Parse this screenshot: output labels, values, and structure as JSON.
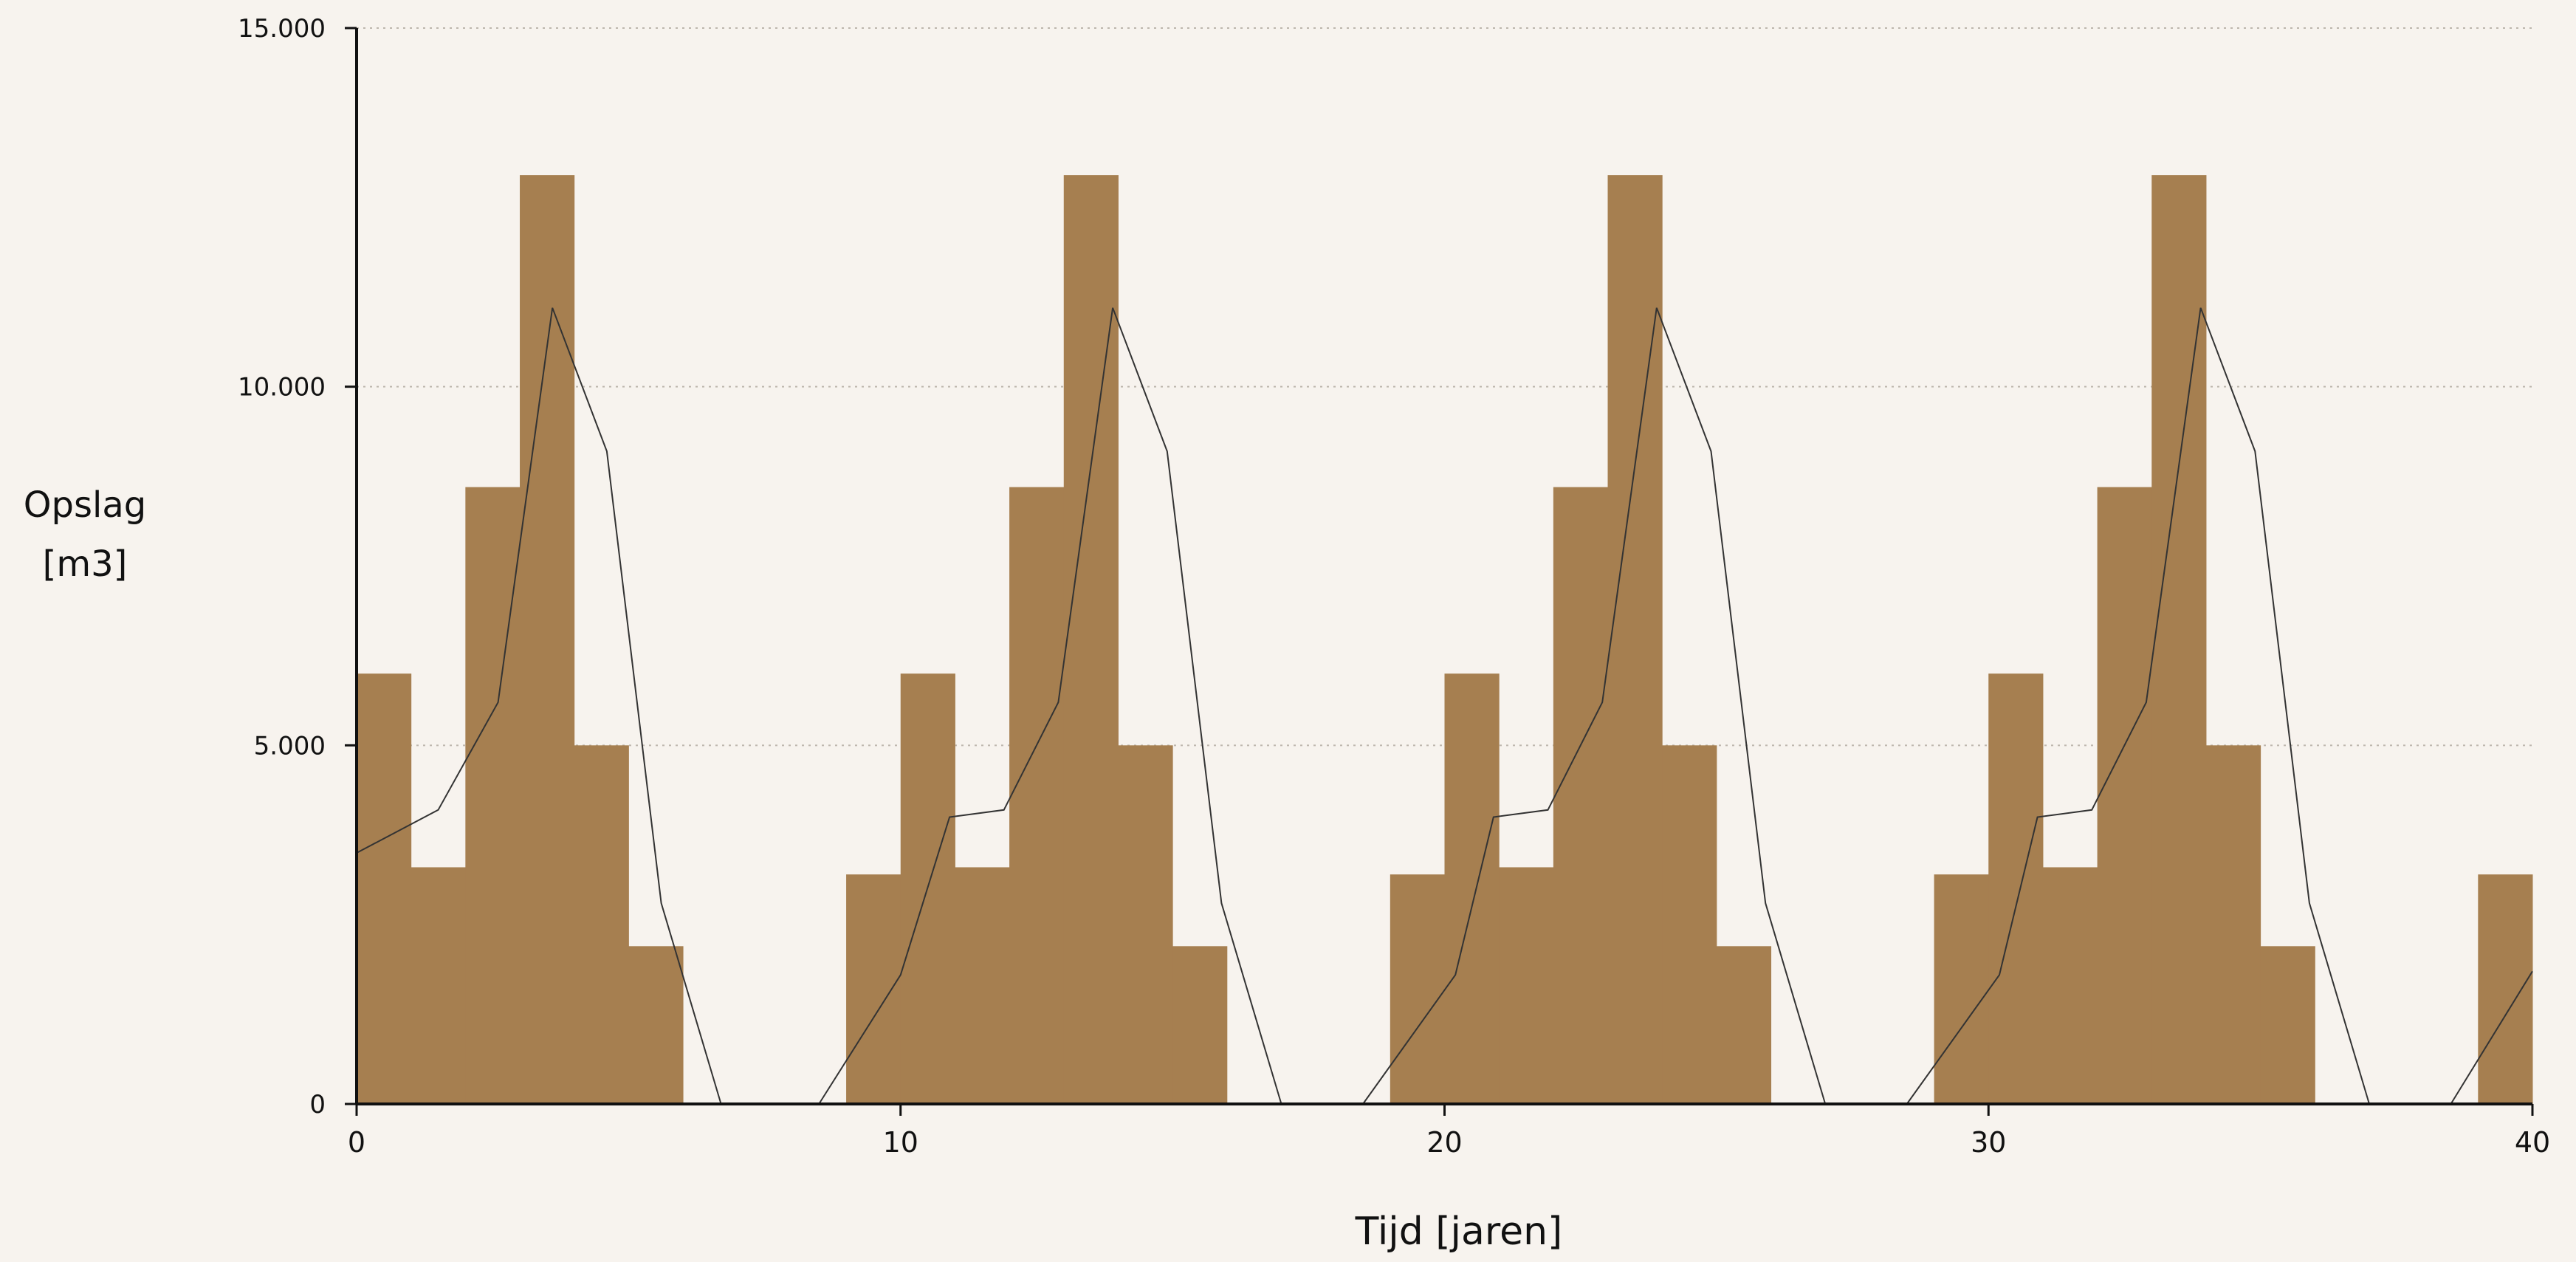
{
  "chart_data": {
    "type": "bar",
    "xlabel": "Tijd [jaren]",
    "ylabel_lines": [
      "Opslag",
      "[m3]"
    ],
    "xlim": [
      0,
      40
    ],
    "ylim": [
      0,
      15000
    ],
    "x_ticks": [
      0,
      10,
      20,
      30,
      40
    ],
    "y_ticks": [
      0,
      5000,
      10000,
      15000
    ],
    "y_tick_labels": [
      "0",
      "5.000",
      "10.000",
      "15.000"
    ],
    "grid": "horizontal dotted",
    "bar_color": "#a67f50",
    "line_color": "#333333",
    "axis_color": "#111111",
    "background_color": "#f7f3ee",
    "series": [
      {
        "type": "bar",
        "bars": [
          {
            "x0": 0,
            "x1": 1,
            "value": 6000
          },
          {
            "x0": 1,
            "x1": 2,
            "value": 3300
          },
          {
            "x0": 2,
            "x1": 3,
            "value": 8600
          },
          {
            "x0": 3,
            "x1": 4,
            "value": 12950
          },
          {
            "x0": 4,
            "x1": 5,
            "value": 5000
          },
          {
            "x0": 5,
            "x1": 6,
            "value": 2200
          },
          {
            "x0": 9,
            "x1": 10,
            "value": 3200
          },
          {
            "x0": 10,
            "x1": 11,
            "value": 6000
          },
          {
            "x0": 11,
            "x1": 12,
            "value": 3300
          },
          {
            "x0": 12,
            "x1": 13,
            "value": 8600
          },
          {
            "x0": 13,
            "x1": 14,
            "value": 12950
          },
          {
            "x0": 14,
            "x1": 15,
            "value": 5000
          },
          {
            "x0": 15,
            "x1": 16,
            "value": 2200
          },
          {
            "x0": 19,
            "x1": 20,
            "value": 3200
          },
          {
            "x0": 20,
            "x1": 21,
            "value": 6000
          },
          {
            "x0": 21,
            "x1": 22,
            "value": 3300
          },
          {
            "x0": 22,
            "x1": 23,
            "value": 8600
          },
          {
            "x0": 23,
            "x1": 24,
            "value": 12950
          },
          {
            "x0": 24,
            "x1": 25,
            "value": 5000
          },
          {
            "x0": 25,
            "x1": 26,
            "value": 2200
          },
          {
            "x0": 29,
            "x1": 30,
            "value": 3200
          },
          {
            "x0": 30,
            "x1": 31,
            "value": 6000
          },
          {
            "x0": 31,
            "x1": 32,
            "value": 3300
          },
          {
            "x0": 32,
            "x1": 33,
            "value": 8600
          },
          {
            "x0": 33,
            "x1": 34,
            "value": 12950
          },
          {
            "x0": 34,
            "x1": 35,
            "value": 5000
          },
          {
            "x0": 35,
            "x1": 36,
            "value": 2200
          },
          {
            "x0": 39,
            "x1": 40,
            "value": 3200
          }
        ]
      },
      {
        "type": "line",
        "segments": [
          [
            [
              0,
              3500
            ],
            [
              1.5,
              4100
            ],
            [
              2.6,
              5600
            ],
            [
              3.6,
              11100
            ],
            [
              4.6,
              9100
            ],
            [
              5.6,
              2800
            ],
            [
              6.7,
              0
            ]
          ],
          [
            [
              8.5,
              0
            ],
            [
              10.0,
              1800
            ],
            [
              10.9,
              4000
            ],
            [
              11.9,
              4100
            ],
            [
              12.9,
              5600
            ],
            [
              13.9,
              11100
            ],
            [
              14.9,
              9100
            ],
            [
              15.9,
              2800
            ],
            [
              17.0,
              0
            ]
          ],
          [
            [
              18.5,
              0
            ],
            [
              20.2,
              1800
            ],
            [
              20.9,
              4000
            ],
            [
              21.9,
              4100
            ],
            [
              22.9,
              5600
            ],
            [
              23.9,
              11100
            ],
            [
              24.9,
              9100
            ],
            [
              25.9,
              2800
            ],
            [
              27.0,
              0
            ]
          ],
          [
            [
              28.5,
              0
            ],
            [
              30.2,
              1800
            ],
            [
              30.9,
              4000
            ],
            [
              31.9,
              4100
            ],
            [
              32.9,
              5600
            ],
            [
              33.9,
              11100
            ],
            [
              34.9,
              9100
            ],
            [
              35.9,
              2800
            ],
            [
              37.0,
              0
            ]
          ],
          [
            [
              38.5,
              0
            ],
            [
              40,
              1850
            ]
          ]
        ]
      }
    ]
  }
}
